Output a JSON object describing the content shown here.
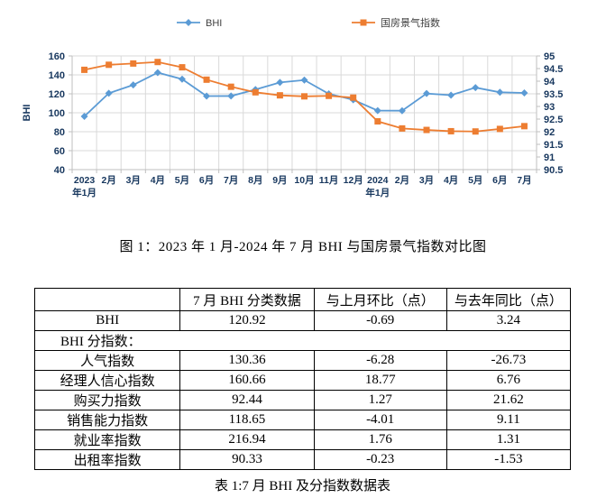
{
  "colors": {
    "bhi_series": "#5B9BD5",
    "guofang_series": "#ED7D31",
    "gridline": "#D9D9D9",
    "axis_line": "#BFBFBF",
    "axis_text": "#17375E",
    "legend_text": "#404040",
    "table_border": "#000000"
  },
  "chart_data": {
    "type": "line",
    "title": "",
    "legend_position": "top",
    "grid": true,
    "categories": [
      [
        "2023",
        "年1月"
      ],
      [
        "2月"
      ],
      [
        "3月"
      ],
      [
        "4月"
      ],
      [
        "5月"
      ],
      [
        "6月"
      ],
      [
        "7月"
      ],
      [
        "8月"
      ],
      [
        "9月"
      ],
      [
        "10月"
      ],
      [
        "11月"
      ],
      [
        "12月"
      ],
      [
        "2024",
        "年1月"
      ],
      [
        "2月"
      ],
      [
        "3月"
      ],
      [
        "4月"
      ],
      [
        "5月"
      ],
      [
        "6月"
      ],
      [
        "7月"
      ]
    ],
    "left_axis": {
      "title": "BHI",
      "min": 40,
      "max": 160,
      "step": 20,
      "ticks": [
        160,
        140,
        120,
        100,
        80,
        60,
        40
      ]
    },
    "right_axis": {
      "min": 90.5,
      "max": 95,
      "step": 0.5,
      "ticks": [
        95,
        94.5,
        94,
        93.5,
        93,
        92.5,
        92,
        91.5,
        91,
        90.5
      ]
    },
    "series": [
      {
        "name": "BHI",
        "axis": "left",
        "marker": "diamond",
        "color": "#5B9BD5",
        "values": [
          96.2,
          120.6,
          129.4,
          142.4,
          135.5,
          117.6,
          117.7,
          124.5,
          132.0,
          134.5,
          120.0,
          113.7,
          102.3,
          102.2,
          120.3,
          118.6,
          126.6,
          121.61,
          120.92
        ]
      },
      {
        "name": "国房景气指数",
        "axis": "right",
        "marker": "square",
        "color": "#ED7D31",
        "values": [
          94.45,
          94.65,
          94.7,
          94.76,
          94.55,
          94.06,
          93.78,
          93.56,
          93.44,
          93.4,
          93.42,
          93.35,
          92.41,
          92.13,
          92.07,
          92.02,
          92.01,
          92.11,
          92.22
        ]
      }
    ]
  },
  "figure_caption": "图 1：2023 年 1 月-2024 年 7 月 BHI 与国房景气指数对比图",
  "table": {
    "headers": [
      "",
      "7 月 BHI 分类数据",
      "与上月环比（点）",
      "与去年同比（点）"
    ],
    "rows": [
      {
        "label": "BHI",
        "values": [
          "120.92",
          "-0.69",
          "3.24"
        ]
      },
      {
        "label": "BHI 分指数：",
        "merged": true,
        "values": []
      },
      {
        "label": "人气指数",
        "values": [
          "130.36",
          "-6.28",
          "-26.73"
        ]
      },
      {
        "label": "经理人信心指数",
        "values": [
          "160.66",
          "18.77",
          "6.76"
        ]
      },
      {
        "label": "购买力指数",
        "values": [
          "92.44",
          "1.27",
          "21.62"
        ]
      },
      {
        "label": "销售能力指数",
        "values": [
          "118.65",
          "-4.01",
          "9.11"
        ]
      },
      {
        "label": "就业率指数",
        "values": [
          "216.94",
          "1.76",
          "1.31"
        ]
      },
      {
        "label": "出租率指数",
        "values": [
          "90.33",
          "-0.23",
          "-1.53"
        ]
      }
    ]
  },
  "table_caption": "表 1:7 月 BHI 及分指数数据表"
}
